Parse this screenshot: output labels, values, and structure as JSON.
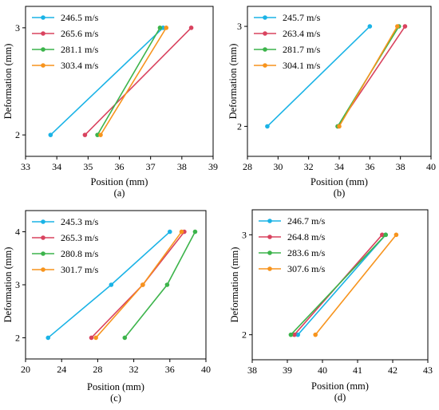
{
  "chart_data": [
    {
      "type": "line",
      "caption": "(a)",
      "xlabel": "Position (mm)",
      "ylabel": "Deformation (mm)",
      "xlim": [
        33,
        39
      ],
      "ylim": [
        1.8,
        3.2
      ],
      "xticks": [
        33,
        34,
        35,
        36,
        37,
        38,
        39
      ],
      "yticks": [
        2,
        3
      ],
      "legend": "top-left",
      "series": [
        {
          "name": "246.5 m/s",
          "color": "#1ab3e6",
          "points": [
            [
              33.8,
              2
            ],
            [
              37.4,
              3
            ]
          ]
        },
        {
          "name": "265.6 m/s",
          "color": "#d9435f",
          "points": [
            [
              34.9,
              2
            ],
            [
              38.3,
              3
            ]
          ]
        },
        {
          "name": "281.1 m/s",
          "color": "#3cb44b",
          "points": [
            [
              35.3,
              2
            ],
            [
              37.3,
              3
            ]
          ]
        },
        {
          "name": "303.4 m/s",
          "color": "#f7941d",
          "points": [
            [
              35.4,
              2
            ],
            [
              37.5,
              3
            ]
          ]
        }
      ]
    },
    {
      "type": "line",
      "caption": "(b)",
      "xlabel": "Position (mm)",
      "ylabel": "Deformation (mm)",
      "xlim": [
        28,
        40
      ],
      "ylim": [
        1.7,
        3.2
      ],
      "xticks": [
        28,
        30,
        32,
        34,
        36,
        38,
        40
      ],
      "yticks": [
        2,
        3
      ],
      "legend": "top-left",
      "series": [
        {
          "name": "245.7 m/s",
          "color": "#1ab3e6",
          "points": [
            [
              29.3,
              2
            ],
            [
              36.0,
              3
            ]
          ]
        },
        {
          "name": "263.4 m/s",
          "color": "#d9435f",
          "points": [
            [
              33.9,
              2
            ],
            [
              38.3,
              3
            ]
          ]
        },
        {
          "name": "281.7 m/s",
          "color": "#3cb44b",
          "points": [
            [
              33.9,
              2
            ],
            [
              37.9,
              3
            ]
          ]
        },
        {
          "name": "304.1 m/s",
          "color": "#f7941d",
          "points": [
            [
              34.0,
              2
            ],
            [
              37.8,
              3
            ]
          ]
        }
      ]
    },
    {
      "type": "line",
      "caption": "(c)",
      "xlabel": "Position (mm)",
      "ylabel": "Deformation (mm)",
      "xlim": [
        20,
        40
      ],
      "ylim": [
        1.6,
        4.4
      ],
      "xticks": [
        20,
        24,
        28,
        32,
        36,
        40
      ],
      "yticks": [
        2,
        3,
        4
      ],
      "legend": "top-left",
      "series": [
        {
          "name": "245.3 m/s",
          "color": "#1ab3e6",
          "points": [
            [
              22.5,
              2
            ],
            [
              29.5,
              3
            ],
            [
              36.0,
              4
            ]
          ]
        },
        {
          "name": "265.3 m/s",
          "color": "#d9435f",
          "points": [
            [
              27.3,
              2
            ],
            [
              33.0,
              3
            ],
            [
              37.6,
              4
            ]
          ]
        },
        {
          "name": "280.8 m/s",
          "color": "#3cb44b",
          "points": [
            [
              31.0,
              2
            ],
            [
              35.7,
              3
            ],
            [
              38.8,
              4
            ]
          ]
        },
        {
          "name": "301.7 m/s",
          "color": "#f7941d",
          "points": [
            [
              27.8,
              2
            ],
            [
              33.0,
              3
            ],
            [
              37.3,
              4
            ]
          ]
        }
      ]
    },
    {
      "type": "line",
      "caption": "(d)",
      "xlabel": "Position (mm)",
      "ylabel": "Deformation (mm)",
      "xlim": [
        38,
        43
      ],
      "ylim": [
        1.75,
        3.25
      ],
      "xticks": [
        38,
        39,
        40,
        41,
        42,
        43
      ],
      "yticks": [
        2,
        3
      ],
      "legend": "top-left",
      "series": [
        {
          "name": "246.7 m/s",
          "color": "#1ab3e6",
          "points": [
            [
              39.3,
              2
            ],
            [
              41.8,
              3
            ]
          ]
        },
        {
          "name": "264.8 m/s",
          "color": "#d9435f",
          "points": [
            [
              39.2,
              2
            ],
            [
              41.7,
              3
            ]
          ]
        },
        {
          "name": "283.6 m/s",
          "color": "#3cb44b",
          "points": [
            [
              39.1,
              2
            ],
            [
              41.8,
              3
            ]
          ]
        },
        {
          "name": "307.6 m/s",
          "color": "#f7941d",
          "points": [
            [
              39.8,
              2
            ],
            [
              42.1,
              3
            ]
          ]
        }
      ]
    }
  ]
}
